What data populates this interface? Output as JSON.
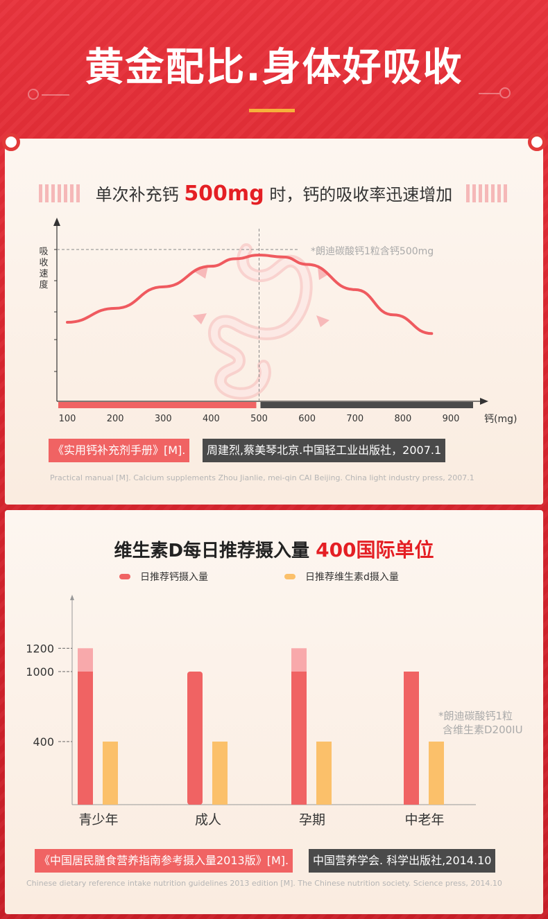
{
  "header": {
    "title": "黄金配比.身体好吸收"
  },
  "section1": {
    "title_pre": "单次补充钙",
    "title_highlight": "500mg",
    "title_post": "时，钙的吸收率迅速增加",
    "ylabel": "吸收速度",
    "note": "*朗迪碳酸钙1粒含钙500mg",
    "citation_red": "《实用钙补充剂手册》[M].",
    "citation_dark": "周建烈,蔡美琴北京.中国轻工业出版社，2007.1",
    "citation_en": "Practical manual [M]. Calcium supplements Zhou Jianlie, mei-qin CAI Beijing. China light industry press, 2007.1"
  },
  "section2": {
    "title_pre": "维生素D每日推荐摄入量",
    "title_highlight": "400国际单位",
    "note_line1": "*朗迪碳酸钙1粒",
    "note_line2": "含维生素D200IU",
    "citation_red": "《中国居民膳食营养指南参考摄入量2013版》[M].",
    "citation_dark": "中国营养学会. 科学出版社,2014.10",
    "citation_en": "Chinese dietary reference intake nutrition guidelines 2013 edition [M]. The Chinese nutrition society. Science press, 2014.10"
  },
  "colors": {
    "red": "#f06363",
    "red_light": "#f8a9ab",
    "orange": "#fbc06a",
    "dark": "#4a4a4a",
    "curve": "#ef5a5f"
  },
  "chart_data": [
    {
      "type": "line",
      "title": "单次补充钙500mg时，钙的吸收率迅速增加",
      "xlabel": "钙(mg)",
      "ylabel": "吸收速度",
      "x_ticks": [
        "100",
        "200",
        "300",
        "400",
        "500",
        "600",
        "700",
        "800",
        "900"
      ],
      "xlim": [
        100,
        900
      ],
      "peak_x": 500,
      "series": [
        {
          "x": [
            100,
            200,
            300,
            400,
            450,
            500,
            550,
            600,
            700,
            780,
            860
          ],
          "y": [
            0.2,
            0.35,
            0.58,
            0.8,
            0.88,
            0.92,
            0.9,
            0.82,
            0.55,
            0.28,
            0.08
          ]
        }
      ],
      "grid": false
    },
    {
      "type": "bar",
      "title": "维生素D每日推荐摄入量400国际单位",
      "categories": [
        "青少年",
        "成人",
        "孕期",
        "中老年"
      ],
      "y_ticks": [
        "400",
        "1000",
        "1200"
      ],
      "legend_position": "top",
      "series": [
        {
          "name": "日推荐钙摄入量",
          "values": [
            1000,
            1000,
            1000,
            1000
          ],
          "upper_values": [
            1200,
            null,
            1200,
            null
          ]
        },
        {
          "name": "日推荐维生素d摄入量",
          "values": [
            400,
            400,
            400,
            400
          ]
        }
      ]
    }
  ]
}
